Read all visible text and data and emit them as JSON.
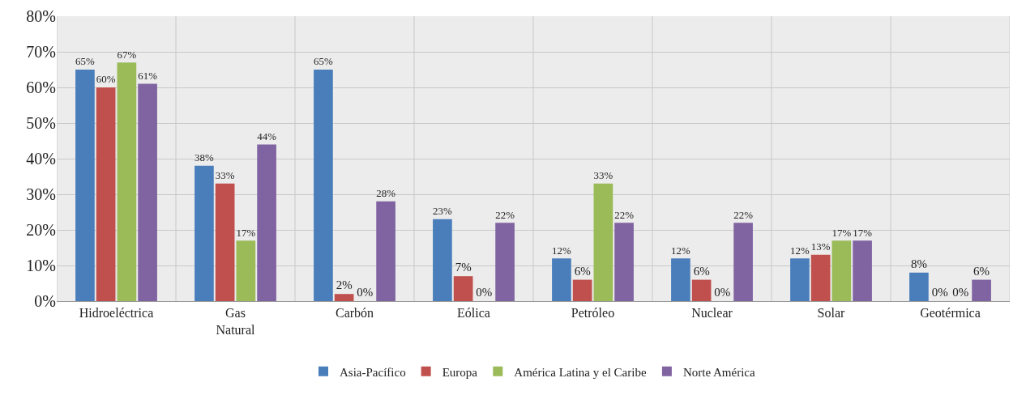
{
  "chart_data": {
    "type": "bar",
    "categories": [
      "Hidroeléctrica",
      "Gas Natural",
      "Carbón",
      "Eólica",
      "Petróleo",
      "Nuclear",
      "Solar",
      "Geotérmica"
    ],
    "series": [
      {
        "name": "Asia-Pacífico",
        "color": "#4a7ebb",
        "values": [
          65,
          38,
          65,
          23,
          12,
          12,
          12,
          8
        ],
        "value_labels": [
          "65%",
          "38%",
          "65%",
          "23%",
          "12%",
          "12%",
          "12%",
          "8%"
        ]
      },
      {
        "name": "Europa",
        "color": "#c0504d",
        "values": [
          60,
          33,
          2,
          7,
          6,
          6,
          13,
          0
        ],
        "value_labels": [
          "60%",
          "33%",
          "2%",
          "7%",
          "6%",
          "6%",
          "13%",
          "0%"
        ]
      },
      {
        "name": "América Latina y el Caribe",
        "color": "#9bbb59",
        "values": [
          67,
          17,
          0,
          0,
          33,
          0,
          17,
          0
        ],
        "value_labels": [
          "67%",
          "17%",
          "0%",
          "0%",
          "33%",
          "0%",
          "17%",
          "0%"
        ]
      },
      {
        "name": "Norte América",
        "color": "#8064a2",
        "values": [
          61,
          44,
          28,
          22,
          22,
          22,
          17,
          6
        ],
        "value_labels": [
          "61%",
          "44%",
          "28%",
          "22%",
          "22%",
          "22%",
          "17%",
          "6%"
        ]
      }
    ],
    "ylim": [
      0,
      80
    ],
    "yticks": [
      {
        "value": 0,
        "label": "0%"
      },
      {
        "value": 10,
        "label": "10%"
      },
      {
        "value": 20,
        "label": "20%"
      },
      {
        "value": 30,
        "label": "30%"
      },
      {
        "value": 40,
        "label": "40%"
      },
      {
        "value": 50,
        "label": "50%"
      },
      {
        "value": 60,
        "label": "60%"
      },
      {
        "value": 70,
        "label": "70%"
      },
      {
        "value": 80,
        "label": "80%"
      }
    ],
    "grid": true,
    "legend": "bottom"
  }
}
